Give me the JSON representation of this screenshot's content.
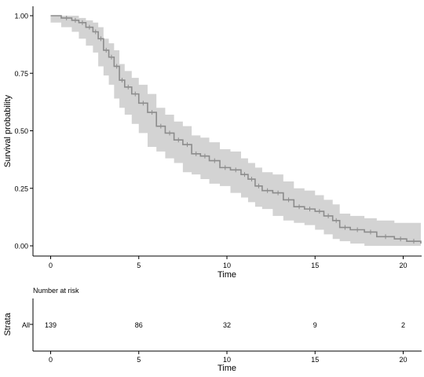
{
  "chart_data": {
    "type": "line",
    "title": "",
    "xlabel": "Time",
    "ylabel": "Survival probability",
    "xlim": [
      0,
      21
    ],
    "ylim": [
      0,
      1
    ],
    "x_ticks": [
      0,
      5,
      10,
      15,
      20
    ],
    "y_ticks": [
      0.0,
      0.25,
      0.5,
      0.75,
      1.0
    ],
    "y_tick_labels": [
      "0.00",
      "0.25",
      "0.50",
      "0.75",
      "1.00"
    ],
    "grid": false,
    "legend": "none",
    "series": [
      {
        "x": [
          0,
          0.6,
          1.2,
          1.6,
          2.0,
          2.4,
          2.7,
          3.0,
          3.3,
          3.6,
          3.9,
          4.2,
          4.6,
          5.0,
          5.5,
          6.0,
          6.5,
          7.0,
          7.5,
          8.0,
          8.5,
          9.0,
          9.6,
          10.2,
          10.8,
          11.2,
          11.6,
          12.0,
          12.6,
          13.2,
          13.8,
          14.4,
          15.0,
          15.5,
          16.0,
          16.4,
          17.0,
          17.8,
          18.5,
          19.5,
          20.2,
          21.0
        ],
        "y": [
          1.0,
          0.99,
          0.98,
          0.97,
          0.95,
          0.93,
          0.9,
          0.85,
          0.82,
          0.78,
          0.72,
          0.69,
          0.66,
          0.62,
          0.58,
          0.52,
          0.49,
          0.46,
          0.44,
          0.4,
          0.39,
          0.37,
          0.34,
          0.33,
          0.31,
          0.29,
          0.26,
          0.24,
          0.23,
          0.2,
          0.17,
          0.16,
          0.15,
          0.13,
          0.11,
          0.08,
          0.07,
          0.06,
          0.04,
          0.03,
          0.02,
          0.01
        ],
        "lower": [
          1.0,
          0.97,
          0.95,
          0.93,
          0.9,
          0.87,
          0.84,
          0.78,
          0.74,
          0.7,
          0.64,
          0.6,
          0.57,
          0.53,
          0.49,
          0.43,
          0.41,
          0.38,
          0.36,
          0.32,
          0.31,
          0.29,
          0.27,
          0.26,
          0.23,
          0.21,
          0.19,
          0.17,
          0.16,
          0.13,
          0.11,
          0.1,
          0.09,
          0.07,
          0.05,
          0.03,
          0.02,
          0.01,
          0.0,
          0.0,
          0.0,
          0.0
        ],
        "upper": [
          1.0,
          1.0,
          1.0,
          0.99,
          0.98,
          0.97,
          0.95,
          0.9,
          0.88,
          0.85,
          0.79,
          0.76,
          0.73,
          0.7,
          0.66,
          0.6,
          0.57,
          0.54,
          0.52,
          0.48,
          0.47,
          0.45,
          0.42,
          0.41,
          0.38,
          0.36,
          0.34,
          0.32,
          0.31,
          0.28,
          0.25,
          0.24,
          0.22,
          0.2,
          0.18,
          0.14,
          0.13,
          0.12,
          0.11,
          0.1,
          0.1,
          0.1
        ]
      }
    ],
    "risk_table": {
      "title": "Number at risk",
      "ylabel": "Strata",
      "xlabel": "Time",
      "strata": [
        "All"
      ],
      "times": [
        0,
        5,
        10,
        15,
        20
      ],
      "counts": [
        139,
        86,
        32,
        9,
        2
      ]
    }
  }
}
